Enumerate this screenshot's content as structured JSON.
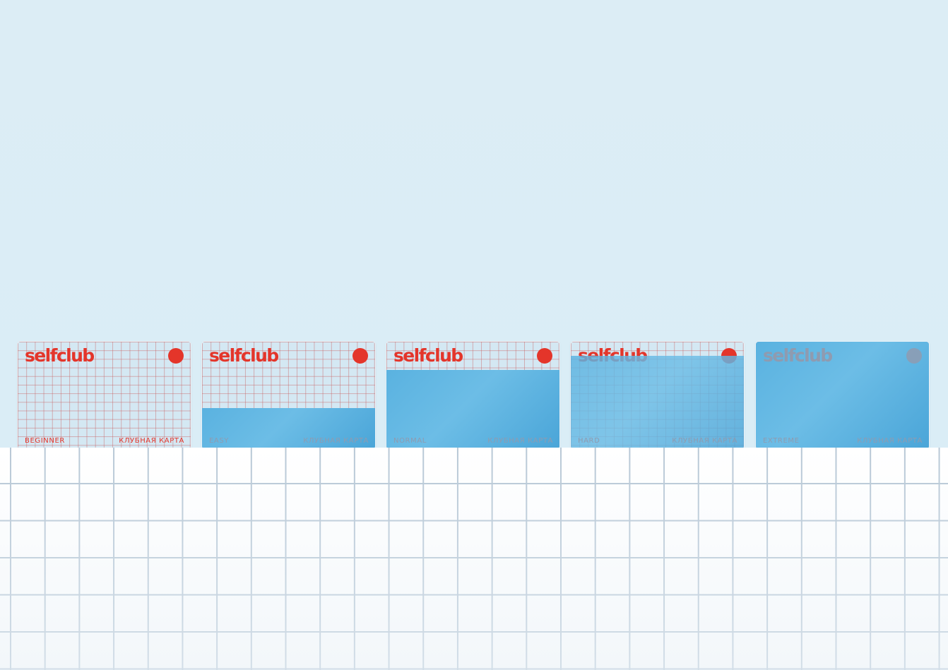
{
  "colors": {
    "background": "#dcedf5",
    "brand_red": "#e4352a",
    "card_blue": "#5ab2e0",
    "muted_gray": "#8f9bb0"
  },
  "cards": [
    {
      "logo": "selfclub",
      "level": "BEGINNER",
      "kind": "КЛУБНАЯ КАРТА",
      "fill_fraction": 0.0
    },
    {
      "logo": "selfclub",
      "level": "EASY",
      "kind": "КЛУБНАЯ КАРТА",
      "fill_fraction": 0.38
    },
    {
      "logo": "selfclub",
      "level": "NORMAL",
      "kind": "КЛУБНАЯ КАРТА",
      "fill_fraction": 0.74
    },
    {
      "logo": "selfclub",
      "level": "HARD",
      "kind": "КЛУБНАЯ КАРТА",
      "fill_fraction": 0.87
    },
    {
      "logo": "selfclub",
      "level": "EXTREME",
      "kind": "КЛУБНАЯ КАРТА",
      "fill_fraction": 1.0
    }
  ]
}
